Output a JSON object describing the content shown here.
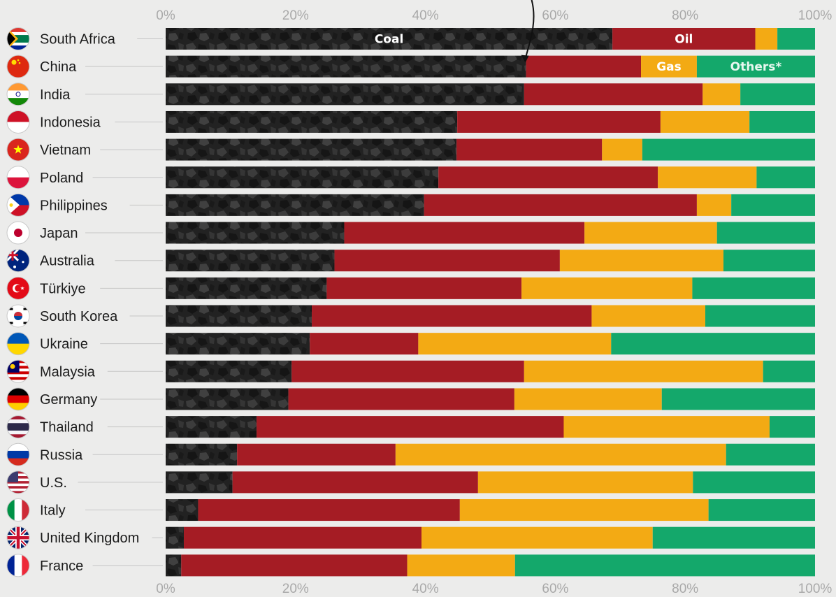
{
  "chart_data": {
    "type": "bar",
    "orientation": "horizontal",
    "stacked": true,
    "title": "",
    "xlabel": "",
    "ylabel": "",
    "xlim": [
      0,
      100
    ],
    "x_ticks": [
      "0%",
      "20%",
      "40%",
      "60%",
      "80%",
      "100%"
    ],
    "categories": [
      "South Africa",
      "China",
      "India",
      "Indonesia",
      "Vietnam",
      "Poland",
      "Philippines",
      "Japan",
      "Australia",
      "Türkiye",
      "South Korea",
      "Ukraine",
      "Malaysia",
      "Germany",
      "Thailand",
      "Russia",
      "U.S.",
      "Italy",
      "United Kingdom",
      "France"
    ],
    "series": [
      {
        "name": "Coal",
        "color": "#1f1f1f",
        "values": [
          68.8,
          55.5,
          55.2,
          44.9,
          44.8,
          42.0,
          39.8,
          27.5,
          26.0,
          24.8,
          22.5,
          22.2,
          19.4,
          18.9,
          14.0,
          11.0,
          10.3,
          5.0,
          2.8,
          2.4
        ]
      },
      {
        "name": "Oil",
        "color": "#a51c24",
        "values": [
          22.0,
          17.7,
          27.5,
          31.3,
          22.4,
          33.8,
          42.0,
          37.0,
          34.7,
          30.0,
          43.1,
          16.7,
          35.8,
          34.8,
          47.3,
          24.4,
          37.8,
          40.3,
          36.6,
          34.8
        ]
      },
      {
        "name": "Gas",
        "color": "#f3aa14",
        "values": [
          3.4,
          8.6,
          5.8,
          13.7,
          6.2,
          15.2,
          5.3,
          20.4,
          25.2,
          26.3,
          17.5,
          29.7,
          36.8,
          22.7,
          31.7,
          50.9,
          33.1,
          38.3,
          35.6,
          16.6
        ]
      },
      {
        "name": "Others*",
        "color": "#14a86b",
        "values": [
          5.8,
          18.2,
          11.5,
          10.1,
          26.6,
          9.0,
          12.9,
          15.1,
          14.1,
          18.9,
          16.9,
          31.4,
          8.0,
          23.6,
          7.0,
          13.7,
          18.8,
          16.4,
          25.0,
          46.2
        ]
      }
    ],
    "segment_labels": [
      {
        "series": "Coal",
        "category": "South Africa",
        "text": "Coal"
      },
      {
        "series": "Oil",
        "category": "South Africa",
        "text": "Oil"
      },
      {
        "series": "Gas",
        "category": "China",
        "text": "Gas"
      },
      {
        "series": "Others*",
        "category": "China",
        "text": "Others*"
      }
    ],
    "annotation": {
      "type": "arrow",
      "points_to": "China",
      "description": "curved arrow from top pointing to the China coal/oil boundary"
    },
    "grid": false,
    "legend": "none (labels inside bars)"
  },
  "flags": {
    "South Africa": "south-africa-flag-icon",
    "China": "china-flag-icon",
    "India": "india-flag-icon",
    "Indonesia": "indonesia-flag-icon",
    "Vietnam": "vietnam-flag-icon",
    "Poland": "poland-flag-icon",
    "Philippines": "philippines-flag-icon",
    "Japan": "japan-flag-icon",
    "Australia": "australia-flag-icon",
    "Türkiye": "turkiye-flag-icon",
    "South Korea": "south-korea-flag-icon",
    "Ukraine": "ukraine-flag-icon",
    "Malaysia": "malaysia-flag-icon",
    "Germany": "germany-flag-icon",
    "Thailand": "thailand-flag-icon",
    "Russia": "russia-flag-icon",
    "U.S.": "us-flag-icon",
    "Italy": "italy-flag-icon",
    "United Kingdom": "uk-flag-icon",
    "France": "france-flag-icon"
  }
}
